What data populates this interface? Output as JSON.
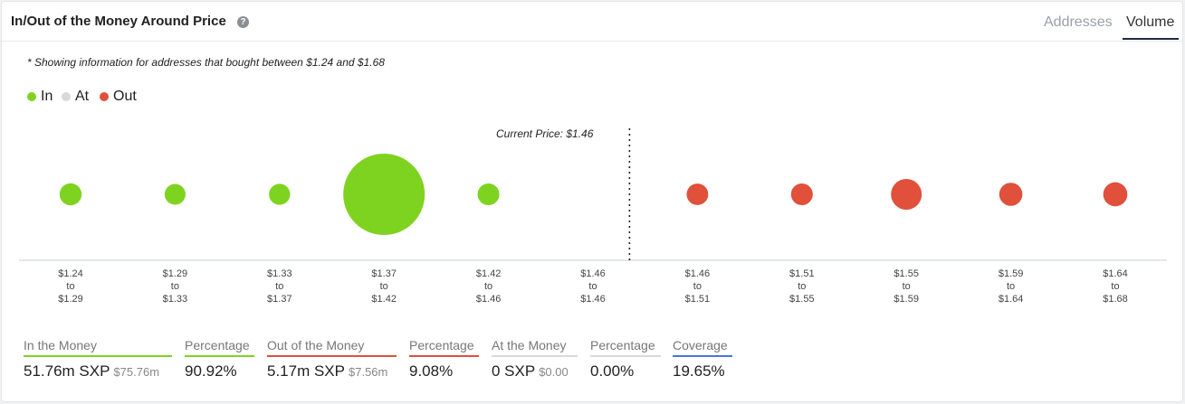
{
  "header": {
    "title": "In/Out of the Money Around Price",
    "help_icon": "question-circle-icon",
    "tabs": [
      {
        "label": "Addresses",
        "active": false
      },
      {
        "label": "Volume",
        "active": true
      }
    ]
  },
  "note": "* Showing information for addresses that bought between $1.24 and $1.68",
  "colors": {
    "in": "#7ed321",
    "at": "#d9d9d9",
    "out": "#e0503a",
    "coverage": "#4a74e0"
  },
  "chart_data": {
    "type": "scatter",
    "legend": [
      {
        "name": "In",
        "color": "#7ed321"
      },
      {
        "name": "At",
        "color": "#d9d9d9"
      },
      {
        "name": "Out",
        "color": "#e0503a"
      }
    ],
    "current_price_label": "Current Price: $1.46",
    "current_price": 1.46,
    "bins": [
      {
        "from": "$1.24",
        "to": "$1.29",
        "status": "in",
        "size": 0.063
      },
      {
        "from": "$1.29",
        "to": "$1.33",
        "status": "in",
        "size": 0.044
      },
      {
        "from": "$1.33",
        "to": "$1.37",
        "status": "in",
        "size": 0.047
      },
      {
        "from": "$1.37",
        "to": "$1.42",
        "status": "in",
        "size": 1.0
      },
      {
        "from": "$1.42",
        "to": "$1.46",
        "status": "in",
        "size": 0.058
      },
      {
        "from": "$1.46",
        "to": "$1.46",
        "status": "at",
        "size": 0
      },
      {
        "from": "$1.46",
        "to": "$1.51",
        "status": "out",
        "size": 0.055
      },
      {
        "from": "$1.51",
        "to": "$1.55",
        "status": "out",
        "size": 0.058
      },
      {
        "from": "$1.55",
        "to": "$1.59",
        "status": "out",
        "size": 0.2
      },
      {
        "from": "$1.59",
        "to": "$1.64",
        "status": "out",
        "size": 0.08
      },
      {
        "from": "$1.64",
        "to": "$1.68",
        "status": "out",
        "size": 0.095
      }
    ],
    "connector": "to"
  },
  "stats": {
    "in_money": {
      "label": "In the Money",
      "value": "51.76m SXP",
      "sub": "$75.76m"
    },
    "in_pct": {
      "label": "Percentage",
      "value": "90.92%"
    },
    "out_money": {
      "label": "Out of the Money",
      "value": "5.17m SXP",
      "sub": "$7.56m"
    },
    "out_pct": {
      "label": "Percentage",
      "value": "9.08%"
    },
    "at_money": {
      "label": "At the Money",
      "value": "0 SXP",
      "sub": "$0.00"
    },
    "at_pct": {
      "label": "Percentage",
      "value": "0.00%"
    },
    "coverage": {
      "label": "Coverage",
      "value": "19.65%"
    }
  }
}
